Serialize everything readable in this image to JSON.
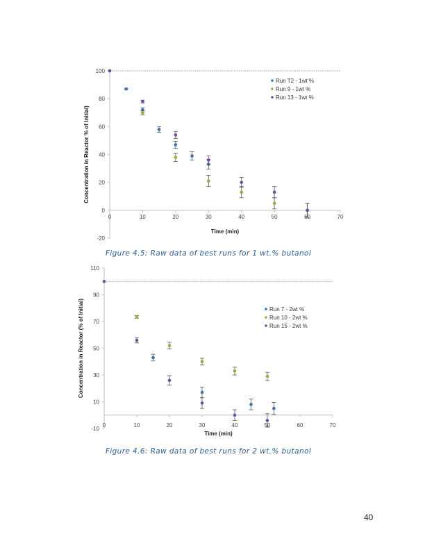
{
  "page_number": "40",
  "chart_data": [
    {
      "type": "scatter",
      "title": "",
      "caption": "Figure 4.5: Raw data of best runs for 1 wt.% butanol",
      "xlabel": "Time (min)",
      "ylabel": "Concentration in Reactor % of Initial)",
      "xlim": [
        0,
        70
      ],
      "ylim": [
        -20,
        100
      ],
      "xticks": [
        0,
        10,
        20,
        30,
        40,
        50,
        60,
        70
      ],
      "yticks": [
        -20,
        0,
        20,
        40,
        60,
        80,
        100
      ],
      "xtick_labels": [
        "0",
        "10",
        "20",
        "30",
        "40",
        "50",
        "60",
        "70"
      ],
      "ytick_labels": [
        "-20",
        "0",
        "20",
        "40",
        "60",
        "80",
        "100"
      ],
      "reference_line": {
        "y": 100,
        "style": "dotted"
      },
      "grid": false,
      "legend_position": "top-right",
      "series": [
        {
          "name": "Run T2 - 1wt %",
          "color": "#3f6fb5",
          "x": [
            0,
            5,
            10,
            15,
            20,
            25,
            30,
            60
          ],
          "y": [
            100,
            87,
            72,
            58,
            47,
            39,
            33,
            0
          ],
          "err": [
            0,
            0.5,
            1.5,
            2,
            2.5,
            3,
            3.5,
            5
          ]
        },
        {
          "name": "Run 9 - 1wt %",
          "color": "#8db33f",
          "x": [
            0,
            10,
            20,
            30,
            40,
            50
          ],
          "y": [
            100,
            70,
            38,
            21,
            13,
            5
          ],
          "err": [
            0,
            1.5,
            3,
            4,
            4,
            4
          ]
        },
        {
          "name": "Run 13 - 1wt %",
          "color": "#6a4f9e",
          "x": [
            0,
            10,
            20,
            30,
            40,
            50,
            60
          ],
          "y": [
            100,
            78,
            54,
            36,
            20,
            13,
            0
          ],
          "err": [
            0,
            1,
            2.5,
            3,
            3.5,
            4,
            5
          ]
        }
      ]
    },
    {
      "type": "scatter",
      "title": "",
      "caption": "Figure 4.6: Raw data of best runs for 2 wt.% butanol",
      "xlabel": "Time (min)",
      "ylabel": "Concentration in Reactor (% of Initial)",
      "xlim": [
        0,
        70
      ],
      "ylim": [
        -10,
        110
      ],
      "xticks": [
        0,
        10,
        20,
        30,
        40,
        50,
        60,
        70
      ],
      "yticks": [
        -10,
        10,
        30,
        50,
        70,
        90,
        110
      ],
      "xtick_labels": [
        "0",
        "10",
        "20",
        "30",
        "40",
        "50",
        "60",
        "70"
      ],
      "ytick_labels": [
        "-10",
        "10",
        "30",
        "50",
        "70",
        "90",
        "110"
      ],
      "reference_line": {
        "y": 100,
        "style": "dotted"
      },
      "grid": false,
      "legend_position": "right",
      "series": [
        {
          "name": "Run 7 - 2wt %",
          "color": "#3f6fb5",
          "x": [
            15,
            30,
            45,
            52
          ],
          "y": [
            43,
            17,
            8,
            5
          ],
          "err": [
            2.5,
            4,
            4,
            4.5
          ]
        },
        {
          "name": "Run 10 - 2wt %",
          "color": "#8db33f",
          "x": [
            10,
            20,
            30,
            40,
            50
          ],
          "y": [
            73.5,
            52,
            40,
            33,
            29
          ],
          "err": [
            1,
            2.5,
            2.5,
            3,
            3
          ]
        },
        {
          "name": "Run 15 - 2wt %",
          "color": "#6a4f9e",
          "x": [
            0,
            10,
            20,
            30,
            40,
            50
          ],
          "y": [
            100,
            56,
            26,
            9,
            0,
            -4
          ],
          "err": [
            0,
            2,
            3.5,
            4,
            4,
            5
          ]
        }
      ]
    }
  ]
}
